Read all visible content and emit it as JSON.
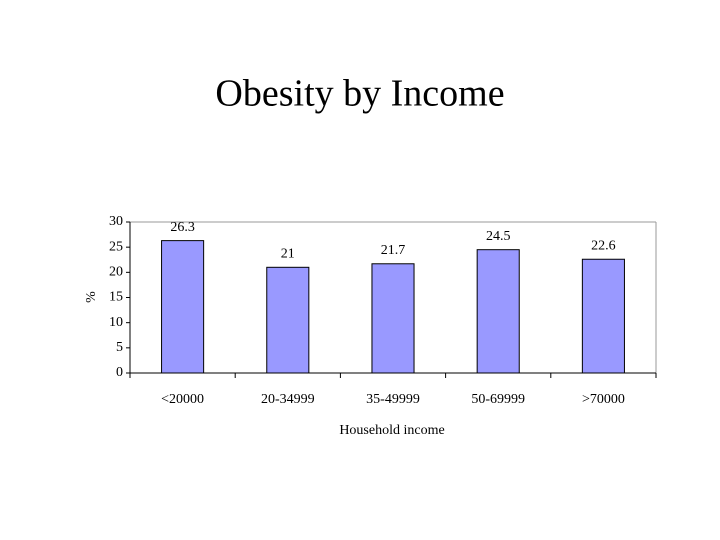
{
  "chart_data": {
    "type": "bar",
    "title": "Obesity by Income",
    "y_label": "%",
    "x_label": "Household income",
    "categories": [
      "<20000",
      "20-34999",
      "35-49999",
      "50-69999",
      ">70000"
    ],
    "values": [
      26.3,
      21,
      21.7,
      24.5,
      22.6
    ],
    "color": "#9999ff",
    "ylim": [
      0,
      30
    ],
    "yticks": [
      0,
      5,
      10,
      15,
      20,
      25,
      30
    ],
    "grid": false
  }
}
